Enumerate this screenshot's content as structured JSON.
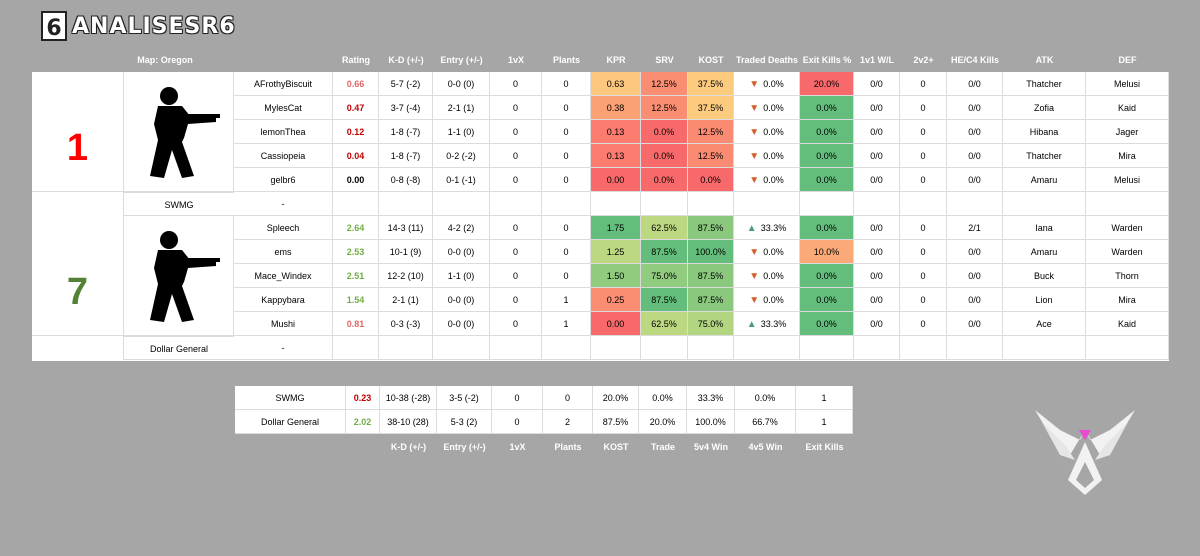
{
  "brand": {
    "title": "ANALISESR6",
    "logo_glyph": "6"
  },
  "colors": {
    "bg": "#a6a6a6",
    "red": "#ff0000",
    "green": "#538135",
    "rating_red": "#c00000",
    "rating_green": "#70ad47"
  },
  "header": {
    "map": "Map: Oregon",
    "cols": [
      "Rating",
      "K-D (+/-)",
      "Entry (+/-)",
      "1vX",
      "Plants",
      "KPR",
      "SRV",
      "KOST",
      "Traded Deaths",
      "Exit Kills %",
      "1v1 W/L",
      "2v2+",
      "HE/C4 Kills",
      "ATK",
      "DEF"
    ]
  },
  "teams": [
    {
      "score": "1",
      "score_color": "#ff0000",
      "name": "SWMG",
      "dash": "-",
      "players": [
        {
          "name": "AFrothyBiscuit",
          "rating": "0.66",
          "kd": "5-7 (-2)",
          "entry": "0-0 (0)",
          "onevx": "0",
          "plants": "0",
          "kpr": "0.63",
          "srv": "12.5%",
          "kost": "37.5%",
          "traded": "0.0%",
          "traded_dir": "down",
          "exit": "20.0%",
          "onev1": "0/0",
          "twov2": "0",
          "hec4": "0/0",
          "atk": "Thatcher",
          "def": "Melusi"
        },
        {
          "name": "MylesCat",
          "rating": "0.47",
          "kd": "3-7 (-4)",
          "entry": "2-1 (1)",
          "onevx": "0",
          "plants": "0",
          "kpr": "0.38",
          "srv": "12.5%",
          "kost": "37.5%",
          "traded": "0.0%",
          "traded_dir": "down",
          "exit": "0.0%",
          "onev1": "0/0",
          "twov2": "0",
          "hec4": "0/0",
          "atk": "Zofia",
          "def": "Kaid"
        },
        {
          "name": "lemonThea",
          "rating": "0.12",
          "kd": "1-8 (-7)",
          "entry": "1-1 (0)",
          "onevx": "0",
          "plants": "0",
          "kpr": "0.13",
          "srv": "0.0%",
          "kost": "12.5%",
          "traded": "0.0%",
          "traded_dir": "down",
          "exit": "0.0%",
          "onev1": "0/0",
          "twov2": "0",
          "hec4": "0/0",
          "atk": "Hibana",
          "def": "Jager"
        },
        {
          "name": "Cassiopeia",
          "rating": "0.04",
          "kd": "1-8 (-7)",
          "entry": "0-2 (-2)",
          "onevx": "0",
          "plants": "0",
          "kpr": "0.13",
          "srv": "0.0%",
          "kost": "12.5%",
          "traded": "0.0%",
          "traded_dir": "down",
          "exit": "0.0%",
          "onev1": "0/0",
          "twov2": "0",
          "hec4": "0/0",
          "atk": "Thatcher",
          "def": "Mira"
        },
        {
          "name": "gelbr6",
          "rating": "0.00",
          "kd": "0-8 (-8)",
          "entry": "0-1 (-1)",
          "onevx": "0",
          "plants": "0",
          "kpr": "0.00",
          "srv": "0.0%",
          "kost": "0.0%",
          "traded": "0.0%",
          "traded_dir": "down",
          "exit": "0.0%",
          "onev1": "0/0",
          "twov2": "0",
          "hec4": "0/0",
          "atk": "Amaru",
          "def": "Melusi"
        }
      ]
    },
    {
      "score": "7",
      "score_color": "#538135",
      "name": "Dollar General",
      "dash": "-",
      "players": [
        {
          "name": "Spleech",
          "rating": "2.64",
          "kd": "14-3 (11)",
          "entry": "4-2 (2)",
          "onevx": "0",
          "plants": "0",
          "kpr": "1.75",
          "srv": "62.5%",
          "kost": "87.5%",
          "traded": "33.3%",
          "traded_dir": "up",
          "exit": "0.0%",
          "onev1": "0/0",
          "twov2": "0",
          "hec4": "2/1",
          "atk": "Iana",
          "def": "Warden"
        },
        {
          "name": "ems",
          "rating": "2.53",
          "kd": "10-1 (9)",
          "entry": "0-0 (0)",
          "onevx": "0",
          "plants": "0",
          "kpr": "1.25",
          "srv": "87.5%",
          "kost": "100.0%",
          "traded": "0.0%",
          "traded_dir": "down",
          "exit": "10.0%",
          "onev1": "0/0",
          "twov2": "0",
          "hec4": "0/0",
          "atk": "Amaru",
          "def": "Warden"
        },
        {
          "name": "Mace_Windex",
          "rating": "2.51",
          "kd": "12-2 (10)",
          "entry": "1-1 (0)",
          "onevx": "0",
          "plants": "0",
          "kpr": "1.50",
          "srv": "75.0%",
          "kost": "87.5%",
          "traded": "0.0%",
          "traded_dir": "down",
          "exit": "0.0%",
          "onev1": "0/0",
          "twov2": "0",
          "hec4": "0/0",
          "atk": "Buck",
          "def": "Thorn"
        },
        {
          "name": "Kappybara",
          "rating": "1.54",
          "kd": "2-1 (1)",
          "entry": "0-0 (0)",
          "onevx": "0",
          "plants": "1",
          "kpr": "0.25",
          "srv": "87.5%",
          "kost": "87.5%",
          "traded": "0.0%",
          "traded_dir": "down",
          "exit": "0.0%",
          "onev1": "0/0",
          "twov2": "0",
          "hec4": "0/0",
          "atk": "Lion",
          "def": "Mira"
        },
        {
          "name": "Mushi",
          "rating": "0.81",
          "kd": "0-3 (-3)",
          "entry": "0-0 (0)",
          "onevx": "0",
          "plants": "1",
          "kpr": "0.00",
          "srv": "62.5%",
          "kost": "75.0%",
          "traded": "33.3%",
          "traded_dir": "up",
          "exit": "0.0%",
          "onev1": "0/0",
          "twov2": "0",
          "hec4": "0/0",
          "atk": "Ace",
          "def": "Kaid"
        }
      ]
    }
  ],
  "summary": {
    "rows": [
      {
        "team": "SWMG",
        "rating": "0.23",
        "kd": "10-38 (-28)",
        "entry": "3-5 (-2)",
        "onevx": "0",
        "plants": "0",
        "kost": "20.0%",
        "trade": "0.0%",
        "w5v4": "33.3%",
        "w4v5": "0.0%",
        "exitk": "1"
      },
      {
        "team": "Dollar General",
        "rating": "2.02",
        "kd": "38-10 (28)",
        "entry": "5-3 (2)",
        "onevx": "0",
        "plants": "2",
        "kost": "87.5%",
        "trade": "20.0%",
        "w5v4": "100.0%",
        "w4v5": "66.7%",
        "exitk": "1"
      }
    ],
    "footer": [
      "K-D (+/-)",
      "Entry (+/-)",
      "1vX",
      "Plants",
      "KOST",
      "Trade",
      "5v4 Win",
      "4v5 Win",
      "Exit Kills"
    ]
  }
}
